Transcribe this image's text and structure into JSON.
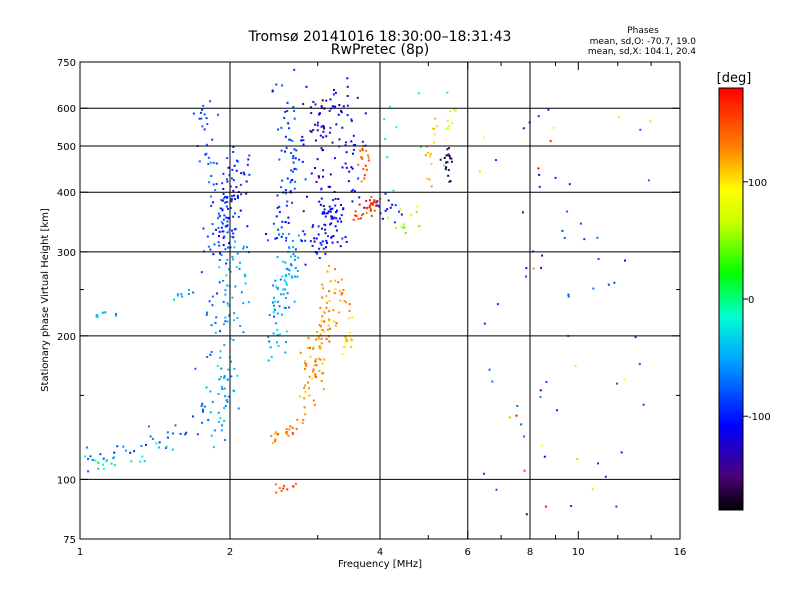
{
  "chart_data": {
    "type": "scatter",
    "title": "Tromsø 20141016 18:30:00–18:31:43",
    "subtitle": "RwPretec (8p)",
    "stats": {
      "heading": "Phases",
      "line_o": "mean, sd,O: -70.7, 19.0",
      "line_x": "mean, sd,X: 104.1, 20.4"
    },
    "xlabel": "Frequency [MHz]",
    "ylabel": "Stationary phase Virtual Height [km]",
    "x_scale": "log",
    "y_scale": "log",
    "xlim": [
      1,
      16
    ],
    "ylim": [
      75,
      750
    ],
    "x_ticks": [
      1,
      2,
      4,
      6,
      8,
      10,
      16
    ],
    "x_tick_labels": [
      "1",
      "2",
      "4",
      "6",
      "8",
      "10",
      "16"
    ],
    "x_minor_ticks": [
      3,
      5,
      7,
      9,
      12,
      14
    ],
    "x_gridlines": [
      2,
      4,
      6,
      8
    ],
    "y_ticks": [
      75,
      100,
      200,
      300,
      400,
      500,
      600,
      750
    ],
    "y_tick_labels": [
      "75",
      "100",
      "200",
      "300",
      "400",
      "500",
      "600",
      "750"
    ],
    "y_minor_ticks": [
      150,
      250
    ],
    "y_gridlines": [
      100,
      200,
      300,
      400,
      500,
      600
    ],
    "grid": true,
    "colorbar": {
      "label": "[deg]",
      "range": [
        -180,
        180
      ],
      "ticks": [
        100,
        0,
        -100
      ],
      "tick_labels": [
        "100",
        "0",
        "-100"
      ],
      "colormap": "rainbow"
    },
    "clusters": [
      {
        "type": "trace",
        "phase": -80,
        "n": 40,
        "pts": [
          [
            1.0,
            110
          ],
          [
            1.1,
            111
          ],
          [
            1.2,
            113
          ],
          [
            1.3,
            116
          ],
          [
            1.4,
            119
          ],
          [
            1.5,
            123
          ],
          [
            1.6,
            128
          ],
          [
            1.7,
            132
          ],
          [
            1.8,
            137
          ],
          [
            1.9,
            145
          ]
        ],
        "spread": [
          0.04,
          0.03
        ]
      },
      {
        "type": "trace",
        "phase": -20,
        "n": 20,
        "pts": [
          [
            1.05,
            108
          ],
          [
            1.2,
            110
          ],
          [
            1.35,
            113
          ],
          [
            1.5,
            117
          ]
        ],
        "spread": [
          0.03,
          0.03
        ]
      },
      {
        "type": "trace",
        "phase": -45,
        "n": 8,
        "pts": [
          [
            1.0,
            220
          ],
          [
            1.15,
            222
          ]
        ],
        "spread": [
          0.02,
          0.01
        ]
      },
      {
        "type": "trace",
        "phase": -50,
        "n": 8,
        "pts": [
          [
            1.55,
            240
          ],
          [
            1.7,
            250
          ]
        ],
        "spread": [
          0.02,
          0.01
        ]
      },
      {
        "type": "trace",
        "phase": -80,
        "n": 70,
        "pts": [
          [
            1.82,
            180
          ],
          [
            1.85,
            240
          ],
          [
            1.88,
            300
          ],
          [
            1.88,
            360
          ],
          [
            1.85,
            430
          ],
          [
            1.82,
            500
          ],
          [
            1.8,
            620
          ]
        ],
        "spread": [
          0.03,
          0.04
        ]
      },
      {
        "type": "trace",
        "phase": -45,
        "n": 90,
        "pts": [
          [
            1.9,
            120
          ],
          [
            1.95,
            150
          ],
          [
            2.0,
            190
          ],
          [
            2.02,
            230
          ],
          [
            2.05,
            280
          ],
          [
            2.08,
            300
          ]
        ],
        "spread": [
          0.035,
          0.06
        ]
      },
      {
        "type": "trace",
        "phase": -100,
        "n": 90,
        "pts": [
          [
            1.9,
            310
          ],
          [
            1.95,
            340
          ],
          [
            2.0,
            380
          ],
          [
            2.05,
            420
          ],
          [
            2.1,
            460
          ]
        ],
        "spread": [
          0.04,
          0.06
        ]
      },
      {
        "type": "trace",
        "phase": -50,
        "n": 80,
        "pts": [
          [
            2.45,
            190
          ],
          [
            2.5,
            220
          ],
          [
            2.55,
            250
          ],
          [
            2.6,
            270
          ],
          [
            2.65,
            290
          ],
          [
            2.7,
            310
          ]
        ],
        "spread": [
          0.025,
          0.05
        ]
      },
      {
        "type": "trace",
        "phase": -90,
        "n": 80,
        "pts": [
          [
            2.5,
            320
          ],
          [
            2.55,
            360
          ],
          [
            2.6,
            400
          ],
          [
            2.65,
            450
          ],
          [
            2.7,
            500
          ],
          [
            2.6,
            580
          ],
          [
            2.55,
            650
          ]
        ],
        "spread": [
          0.03,
          0.05
        ]
      },
      {
        "type": "trace",
        "phase": 130,
        "n": 25,
        "pts": [
          [
            2.4,
            122
          ],
          [
            2.55,
            124
          ],
          [
            2.7,
            128
          ],
          [
            2.8,
            133
          ]
        ],
        "spread": [
          0.015,
          0.02
        ]
      },
      {
        "type": "trace",
        "phase": 125,
        "n": 110,
        "pts": [
          [
            2.9,
            150
          ],
          [
            2.95,
            170
          ],
          [
            3.0,
            190
          ],
          [
            3.1,
            210
          ],
          [
            3.2,
            240
          ],
          [
            3.3,
            255
          ]
        ],
        "spread": [
          0.03,
          0.05
        ]
      },
      {
        "type": "trace",
        "phase": 115,
        "n": 15,
        "pts": [
          [
            3.4,
            180
          ],
          [
            3.45,
            200
          ],
          [
            3.5,
            220
          ]
        ],
        "spread": [
          0.01,
          0.03
        ]
      },
      {
        "type": "trace",
        "phase": -110,
        "n": 140,
        "pts": [
          [
            3.0,
            310
          ],
          [
            3.1,
            320
          ],
          [
            3.2,
            340
          ],
          [
            3.3,
            370
          ],
          [
            3.4,
            420
          ],
          [
            3.45,
            480
          ],
          [
            3.4,
            560
          ],
          [
            3.3,
            630
          ]
        ],
        "spread": [
          0.05,
          0.06
        ]
      },
      {
        "type": "trace",
        "phase": -130,
        "n": 50,
        "pts": [
          [
            2.9,
            350
          ],
          [
            3.0,
            420
          ],
          [
            3.05,
            500
          ],
          [
            3.0,
            580
          ],
          [
            3.0,
            640
          ]
        ],
        "spread": [
          0.03,
          0.04
        ]
      },
      {
        "type": "trace",
        "phase": 155,
        "n": 35,
        "pts": [
          [
            3.6,
            355
          ],
          [
            3.75,
            365
          ],
          [
            3.85,
            375
          ],
          [
            3.95,
            385
          ]
        ],
        "spread": [
          0.015,
          0.015
        ]
      },
      {
        "type": "trace",
        "phase": 145,
        "n": 20,
        "pts": [
          [
            3.65,
            420
          ],
          [
            3.7,
            460
          ],
          [
            3.75,
            500
          ]
        ],
        "spread": [
          0.012,
          0.03
        ]
      },
      {
        "type": "trace",
        "phase": -100,
        "n": 15,
        "pts": [
          [
            3.9,
            400
          ],
          [
            4.1,
            380
          ],
          [
            4.3,
            360
          ]
        ],
        "spread": [
          0.03,
          0.03
        ]
      },
      {
        "type": "trace",
        "phase": 60,
        "n": 12,
        "pts": [
          [
            4.2,
            330
          ],
          [
            4.5,
            340
          ],
          [
            4.7,
            350
          ]
        ],
        "spread": [
          0.03,
          0.03
        ]
      },
      {
        "type": "trace",
        "phase": 110,
        "n": 15,
        "pts": [
          [
            4.9,
            400
          ],
          [
            5.0,
            450
          ],
          [
            5.1,
            520
          ],
          [
            5.2,
            580
          ]
        ],
        "spread": [
          0.015,
          0.03
        ]
      },
      {
        "type": "trace",
        "phase": -150,
        "n": 20,
        "pts": [
          [
            5.4,
            430
          ],
          [
            5.5,
            470
          ],
          [
            5.6,
            520
          ]
        ],
        "spread": [
          0.012,
          0.03
        ]
      },
      {
        "type": "trace",
        "phase": 80,
        "n": 8,
        "pts": [
          [
            5.5,
            540
          ],
          [
            5.6,
            600
          ]
        ],
        "spread": [
          0.01,
          0.02
        ]
      },
      {
        "type": "trace",
        "phase": 150,
        "n": 10,
        "pts": [
          [
            2.4,
            95
          ],
          [
            2.55,
            96
          ],
          [
            2.7,
            97
          ]
        ],
        "spread": [
          0.02,
          0.01
        ]
      },
      {
        "type": "scatter",
        "phase": -80,
        "n": 45,
        "xr": [
          6.2,
          14
        ],
        "yr": [
          80,
          650
        ]
      },
      {
        "type": "scatter",
        "phase": 100,
        "n": 12,
        "xr": [
          6.2,
          14
        ],
        "yr": [
          80,
          650
        ]
      },
      {
        "type": "scatter",
        "phase": -140,
        "n": 10,
        "xr": [
          7.5,
          9
        ],
        "yr": [
          80,
          650
        ]
      },
      {
        "type": "scatter",
        "phase": 170,
        "n": 5,
        "xr": [
          7.5,
          9
        ],
        "yr": [
          80,
          650
        ]
      },
      {
        "type": "scatter",
        "phase": -10,
        "n": 10,
        "xr": [
          4.0,
          6.0
        ],
        "yr": [
          400,
          650
        ]
      }
    ]
  }
}
